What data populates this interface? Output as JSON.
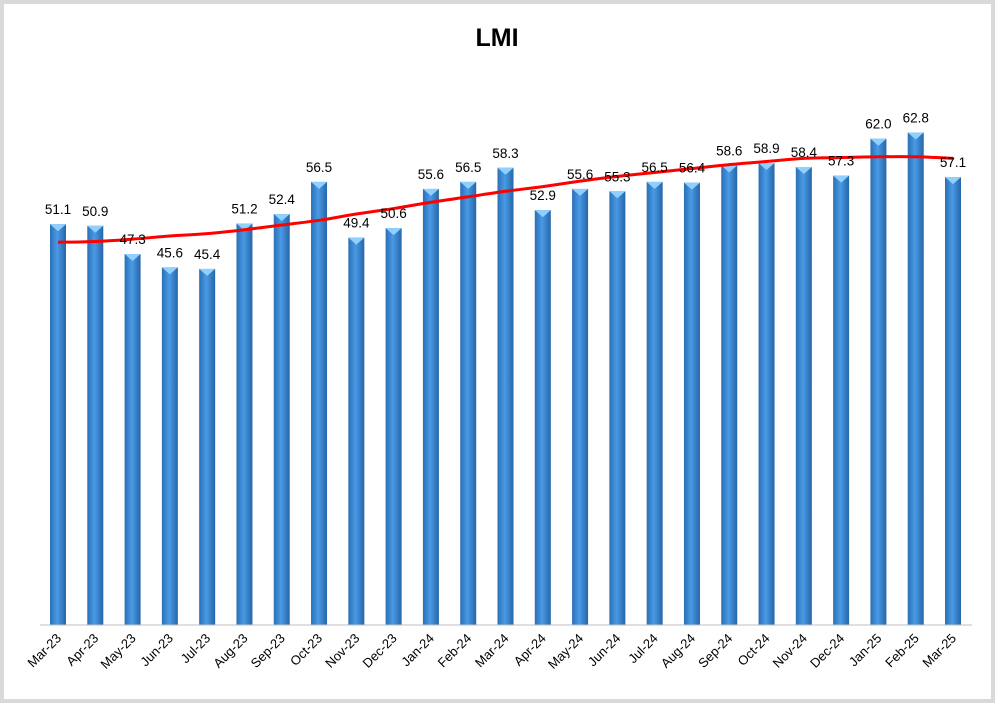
{
  "chart_data": {
    "type": "bar",
    "title": "LMI",
    "categories": [
      "Mar-23",
      "Apr-23",
      "May-23",
      "Jun-23",
      "Jul-23",
      "Aug-23",
      "Sep-23",
      "Oct-23",
      "Nov-23",
      "Dec-23",
      "Jan-24",
      "Feb-24",
      "Mar-24",
      "Apr-24",
      "May-24",
      "Jun-24",
      "Jul-24",
      "Aug-24",
      "Sep-24",
      "Oct-24",
      "Nov-24",
      "Dec-24",
      "Jan-25",
      "Feb-25",
      "Mar-25"
    ],
    "values": [
      51.1,
      50.9,
      47.3,
      45.6,
      45.4,
      51.2,
      52.4,
      56.5,
      49.4,
      50.6,
      55.6,
      56.5,
      58.3,
      52.9,
      55.6,
      55.3,
      56.5,
      56.4,
      58.6,
      58.9,
      58.4,
      57.3,
      62.0,
      62.8,
      57.1
    ],
    "data_labels": [
      "51.1",
      "50.9",
      "47.3",
      "45.6",
      "45.4",
      "51.2",
      "52.4",
      "56.5",
      "49.4",
      "50.6",
      "55.6",
      "56.5",
      "58.3",
      "52.9",
      "55.6",
      "55.3",
      "56.5",
      "56.4",
      "58.6",
      "58.9",
      "58.4",
      "57.3",
      "62.0",
      "62.8",
      "57.1"
    ],
    "trendline": {
      "type": "polynomial",
      "color": "#ff0000",
      "values": [
        48.8,
        48.9,
        49.2,
        49.6,
        49.9,
        50.4,
        51.0,
        51.6,
        52.4,
        53.1,
        53.9,
        54.6,
        55.3,
        55.9,
        56.6,
        57.2,
        57.7,
        58.2,
        58.7,
        59.1,
        59.5,
        59.6,
        59.7,
        59.7,
        59.5
      ]
    },
    "ylim": [
      0,
      70
    ],
    "y_axis_visible": false,
    "grid": false,
    "legend": "none",
    "bar_color": "#3d8fd9",
    "xlabel": "",
    "ylabel": ""
  }
}
